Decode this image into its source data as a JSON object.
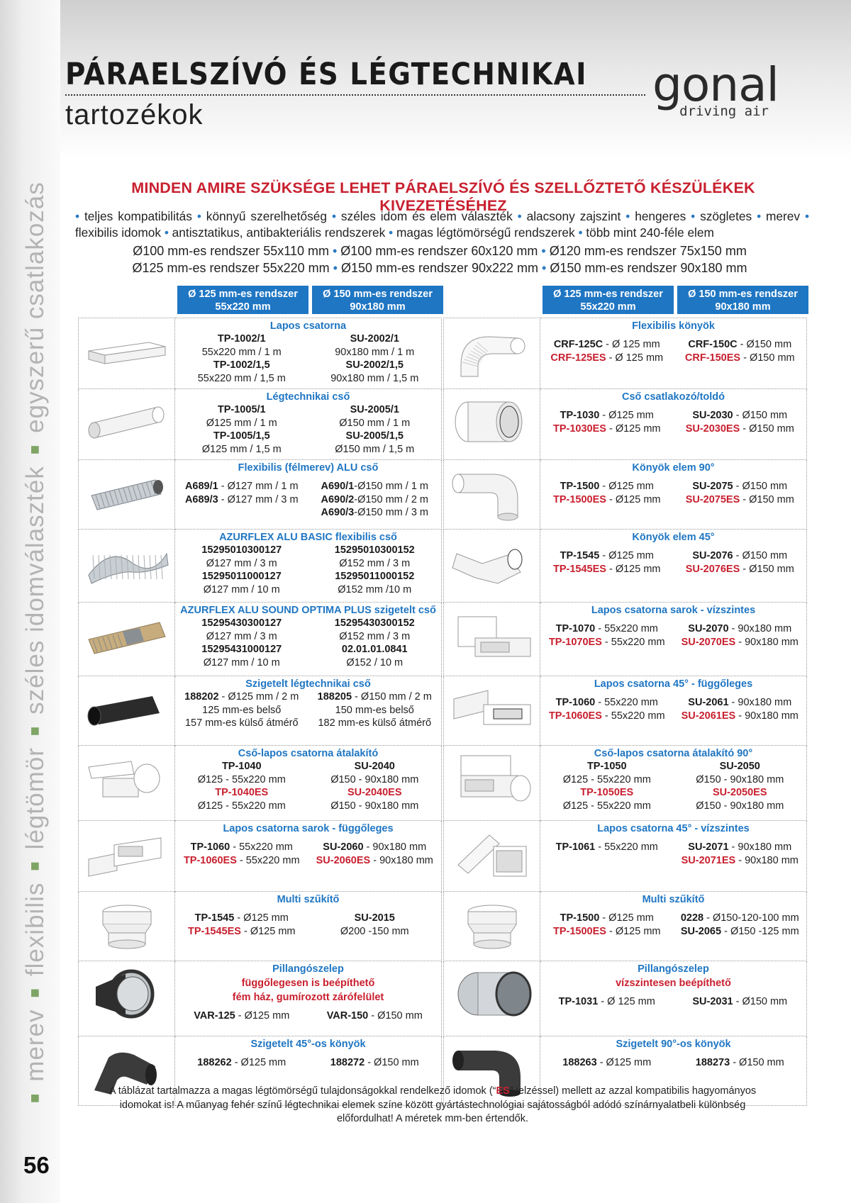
{
  "title": {
    "line1": "PÁRAELSZÍVÓ ÉS LÉGTECHNIKAI",
    "line2": "tartozékok"
  },
  "logo": {
    "name": "gonal",
    "tagline": "driving air"
  },
  "sidebar_text": [
    "merev",
    "flexibilis",
    "légtömör",
    "széles idomválaszték",
    "egyszerű csatlakozás"
  ],
  "headline": "MINDEN AMIRE SZÜKSÉGE LEHET PÁRAELSZÍVÓ ÉS SZELLŐZTETŐ KÉSZÜLÉKEK KIVEZETÉSÉHEZ",
  "features": [
    "teljes kompatibilitás",
    "könnyű szerelhetőség",
    "széles idom és elem választék",
    "alacsony zajszint",
    "hengeres",
    "szögletes",
    "merev",
    "flexibilis idomok",
    "antisztatikus, antibakteriális rendszerek",
    "magas légtömörségű rendszerek",
    "több mint 240-féle elem"
  ],
  "systems": [
    [
      "Ø100 mm-es rendszer 55x110 mm",
      "Ø100 mm-es rendszer 60x120 mm",
      "Ø120 mm-es rendszer 75x150 mm"
    ],
    [
      "Ø125 mm-es rendszer 55x220 mm",
      "Ø150 mm-es rendszer 90x222 mm",
      "Ø150 mm-es rendszer 90x180 mm"
    ]
  ],
  "col_headers": {
    "h125_line1": "Ø 125 mm-es rendszer",
    "h125_line2": "55x220 mm",
    "h150_line1": "Ø 150 mm-es rendszer",
    "h150_line2": "90x180 mm"
  },
  "left_rows": [
    {
      "title": "Lapos csatorna",
      "img": "flat-duct",
      "a": [
        [
          "k",
          "TP-1002/1"
        ],
        [
          "t",
          "55x220 mm / 1 m"
        ],
        [
          "k",
          "TP-1002/1,5"
        ],
        [
          "t",
          "55x220 mm / 1,5 m"
        ]
      ],
      "b": [
        [
          "k",
          "SU-2002/1"
        ],
        [
          "t",
          "90x180 mm / 1 m"
        ],
        [
          "k",
          "SU-2002/1,5"
        ],
        [
          "t",
          "90x180 mm / 1,5 m"
        ]
      ]
    },
    {
      "title": "Légtechnikai cső",
      "img": "round-pipe",
      "a": [
        [
          "k",
          "TP-1005/1"
        ],
        [
          "t",
          "Ø125 mm / 1 m"
        ],
        [
          "k",
          "TP-1005/1,5"
        ],
        [
          "t",
          "Ø125 mm / 1,5 m"
        ]
      ],
      "b": [
        [
          "k",
          "SU-2005/1"
        ],
        [
          "t",
          "Ø150 mm / 1 m"
        ],
        [
          "k",
          "SU-2005/1,5"
        ],
        [
          "t",
          "Ø150 mm / 1,5 m"
        ]
      ]
    },
    {
      "title": "Flexibilis (félmerev) ALU cső",
      "img": "alu-flex",
      "a": [
        [
          "kt",
          "A689/1",
          " - Ø127 mm / 1 m"
        ],
        [
          "kt",
          "A689/3",
          " - Ø127 mm / 3 m"
        ]
      ],
      "b": [
        [
          "kt",
          "A690/1",
          "-Ø150 mm / 1 m"
        ],
        [
          "kt",
          "A690/2",
          "-Ø150 mm / 2 m"
        ],
        [
          "kt",
          "A690/3",
          "-Ø150 mm / 3 m"
        ]
      ]
    },
    {
      "title": "AZURFLEX ALU BASIC flexibilis cső",
      "img": "alu-flex-loose",
      "a": [
        [
          "k",
          "15295010300127"
        ],
        [
          "t",
          "Ø127 mm / 3 m"
        ],
        [
          "k",
          "15295011000127"
        ],
        [
          "t",
          "Ø127 mm / 10 m"
        ]
      ],
      "b": [
        [
          "k",
          "15295010300152"
        ],
        [
          "t",
          "Ø152 mm / 3 m"
        ],
        [
          "k",
          "15295011000152"
        ],
        [
          "t",
          "Ø152 mm /10 m"
        ]
      ]
    },
    {
      "title": "AZURFLEX ALU SOUND OPTIMA PLUS szigetelt cső",
      "img": "insulated-flex",
      "a": [
        [
          "k",
          "15295430300127"
        ],
        [
          "t",
          "Ø127 mm / 3 m"
        ],
        [
          "k",
          "15295431000127"
        ],
        [
          "t",
          "Ø127 mm / 10 m"
        ]
      ],
      "b": [
        [
          "k",
          "15295430300152"
        ],
        [
          "t",
          "Ø152 mm / 3 m"
        ],
        [
          "k",
          "02.01.01.0841"
        ],
        [
          "t",
          "Ø152 / 10 m"
        ]
      ]
    },
    {
      "title": "Szigetelt légtechnikai cső",
      "img": "black-pipe",
      "a": [
        [
          "kt",
          "188202",
          " - Ø125 mm / 2 m"
        ],
        [
          "t",
          "125 mm-es belső"
        ],
        [
          "t",
          "157 mm-es külső átmérő"
        ]
      ],
      "b": [
        [
          "kt",
          "188205",
          " - Ø150 mm / 2 m"
        ],
        [
          "t",
          "150 mm-es belső"
        ],
        [
          "t",
          "182 mm-es külső átmérő"
        ]
      ]
    },
    {
      "title": "Cső-lapos csatorna átalakító",
      "img": "adapter",
      "a": [
        [
          "k",
          "TP-1040"
        ],
        [
          "t",
          "Ø125 - 55x220 mm"
        ],
        [
          "r",
          "TP-1040ES"
        ],
        [
          "t",
          "Ø125 - 55x220  mm"
        ]
      ],
      "b": [
        [
          "k",
          "SU-2040"
        ],
        [
          "t",
          "Ø150 - 90x180 mm"
        ],
        [
          "r",
          "SU-2040ES"
        ],
        [
          "t",
          "Ø150 - 90x180 mm"
        ]
      ]
    },
    {
      "title": "Lapos csatorna sarok - függőleges",
      "img": "flat-elbow",
      "a": [
        [
          "kt",
          "TP-1060",
          " - 55x220 mm"
        ],
        [
          "rt",
          "TP-1060ES",
          " - 55x220 mm"
        ]
      ],
      "b": [
        [
          "kt",
          "SU-2060",
          " - 90x180 mm"
        ],
        [
          "rt",
          "SU-2060ES",
          " - 90x180 mm"
        ]
      ]
    },
    {
      "title": "Multi szűkítő",
      "img": "reducer",
      "a": [
        [
          "kt",
          "TP-1545",
          " - Ø125 mm"
        ],
        [
          "rt",
          "TP-1545ES",
          " - Ø125 mm"
        ]
      ],
      "b": [
        [
          "k",
          "SU-2015"
        ],
        [
          "t",
          "Ø200 -150 mm"
        ]
      ]
    },
    {
      "title": "Pillangószelep",
      "img": "valve-mesh",
      "sub": [
        "függőlegesen is beépíthető",
        "fém ház, gumírozott zárófelület"
      ],
      "a": [
        [
          "kt",
          "VAR-125",
          " - Ø125 mm"
        ]
      ],
      "b": [
        [
          "kt",
          "VAR-150",
          " - Ø150 mm"
        ]
      ]
    },
    {
      "title": "Szigetelt 45°-os könyök",
      "img": "black-elbow",
      "a": [
        [
          "kt",
          "188262",
          " - Ø125 mm"
        ]
      ],
      "b": [
        [
          "kt",
          "188272",
          " - Ø150 mm"
        ]
      ]
    }
  ],
  "right_rows": [
    {
      "title": "Flexibilis könyök",
      "img": "flex-elbow",
      "a": [
        [
          "kt",
          "CRF-125C",
          " - Ø 125 mm"
        ],
        [
          "rt",
          "CRF-125ES",
          " - Ø 125 mm"
        ]
      ],
      "b": [
        [
          "kt",
          "CRF-150C",
          " - Ø150 mm"
        ],
        [
          "rt",
          "CRF-150ES",
          " -  Ø150 mm"
        ]
      ]
    },
    {
      "title": "Cső csatlakozó/toldó",
      "img": "connector",
      "a": [
        [
          "kt",
          "TP-1030",
          " - Ø125 mm"
        ],
        [
          "rt",
          "TP-1030ES",
          " - Ø125 mm"
        ]
      ],
      "b": [
        [
          "kt",
          "SU-2030",
          " - Ø150 mm"
        ],
        [
          "rt",
          "SU-2030ES",
          " - Ø150 mm"
        ]
      ]
    },
    {
      "title": "Könyök elem 90°",
      "img": "elbow-90",
      "a": [
        [
          "kt",
          "TP-1500",
          " - Ø125 mm"
        ],
        [
          "rt",
          "TP-1500ES",
          " - Ø125 mm"
        ]
      ],
      "b": [
        [
          "kt",
          "SU-2075",
          " - Ø150 mm"
        ],
        [
          "rt",
          "SU-2075ES",
          " - Ø150 mm"
        ]
      ]
    },
    {
      "title": "Könyök elem 45°",
      "img": "elbow-45",
      "a": [
        [
          "kt",
          "TP-1545",
          " - Ø125 mm"
        ],
        [
          "rt",
          "TP-1545ES",
          " - Ø125 mm"
        ]
      ],
      "b": [
        [
          "kt",
          "SU-2076",
          " - Ø150 mm"
        ],
        [
          "rt",
          "SU-2076ES",
          " - Ø150 mm"
        ]
      ]
    },
    {
      "title": "Lapos csatorna sarok - vízszintes",
      "img": "flat-corner-h",
      "a": [
        [
          "kt",
          "TP-1070",
          " - 55x220 mm"
        ],
        [
          "rt",
          "TP-1070ES",
          " - 55x220 mm"
        ]
      ],
      "b": [
        [
          "kt",
          "SU-2070",
          " - 90x180 mm"
        ],
        [
          "rt",
          "SU-2070ES",
          " - 90x180 mm"
        ]
      ]
    },
    {
      "title": "Lapos csatorna 45° - függőleges",
      "img": "flat-45-v",
      "a": [
        [
          "kt",
          "TP-1060",
          " - 55x220 mm"
        ],
        [
          "rt",
          "TP-1060ES",
          " - 55x220 mm"
        ]
      ],
      "b": [
        [
          "kt",
          "SU-2061",
          " - 90x180 mm"
        ],
        [
          "rt",
          "SU-2061ES",
          " - 90x180 mm"
        ]
      ]
    },
    {
      "title": "Cső-lapos csatorna átalakító 90°",
      "img": "adapter-90",
      "a": [
        [
          "k",
          "TP-1050"
        ],
        [
          "t",
          "Ø125 - 55x220 mm"
        ],
        [
          "r",
          "TP-1050ES"
        ],
        [
          "t",
          "Ø125 - 55x220 mm"
        ]
      ],
      "b": [
        [
          "k",
          "SU-2050"
        ],
        [
          "t",
          "Ø150 - 90x180 mm"
        ],
        [
          "r",
          "SU-2050ES"
        ],
        [
          "t",
          "Ø150 - 90x180 mm"
        ]
      ]
    },
    {
      "title": "Lapos csatorna 45° - vízszintes",
      "img": "flat-45-h",
      "a": [
        [
          "kt",
          "TP-1061",
          " - 55x220 mm"
        ]
      ],
      "b": [
        [
          "kt",
          "SU-2071",
          " - 90x180 mm"
        ],
        [
          "rt",
          "SU-2071ES",
          " - 90x180 mm"
        ]
      ]
    },
    {
      "title": "Multi szűkítő",
      "img": "reducer",
      "a": [
        [
          "kt",
          "TP-1500",
          " - Ø125 mm"
        ],
        [
          "rt",
          "TP-1500ES",
          " - Ø125 mm"
        ]
      ],
      "b": [
        [
          "kt",
          "0228",
          " - Ø150-120-100 mm"
        ],
        [
          "kt",
          "SU-2065",
          " - Ø150 -125 mm"
        ]
      ]
    },
    {
      "title": "Pillangószelep",
      "img": "valve",
      "sub": [
        "vízszintesen beépíthető"
      ],
      "a": [
        [
          "kt",
          "TP-1031",
          " - Ø 125 mm"
        ]
      ],
      "b": [
        [
          "kt",
          "SU-2031",
          " - Ø150 mm"
        ]
      ]
    },
    {
      "title": "Szigetelt 90°-os könyök",
      "img": "black-elbow-90",
      "a": [
        [
          "kt",
          "188263",
          " - Ø125 mm"
        ]
      ],
      "b": [
        [
          "kt",
          "188273",
          " - Ø150 mm"
        ]
      ]
    }
  ],
  "footnote": {
    "p1": "A táblázat tartalmazza a magas légtömörségű tulajdonságokkal rendelkező idomok (“",
    "es": "ES",
    "p2": "” jelzéssel) mellett az azzal kompatibilis hagyományos idomokat is! A műanyag fehér színű légtechnikai elemek színe között gyártástechnológiai sajátosságból adódó színárnyalatbeli különbség előfordulhat! A méretek mm-ben értendők."
  },
  "page_number": "56",
  "colors": {
    "accent_blue": "#1f76c3",
    "accent_red": "#c8202f",
    "green": "#7fa565"
  }
}
